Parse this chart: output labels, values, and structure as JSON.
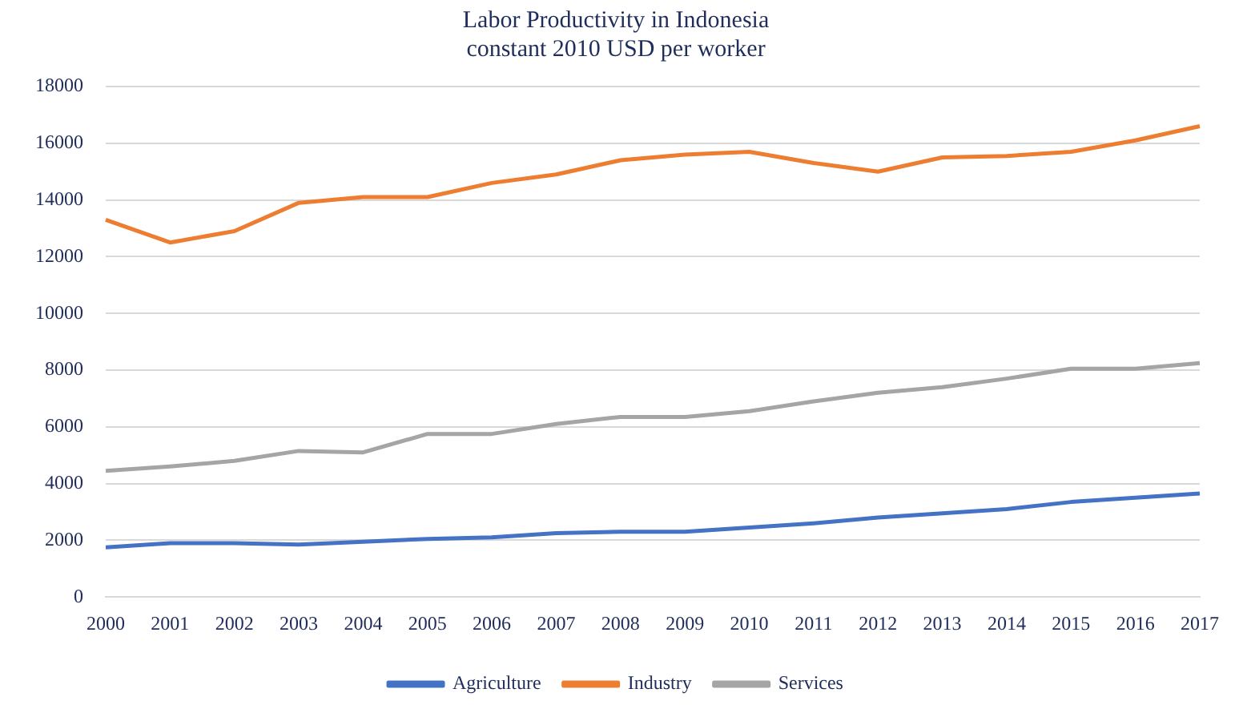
{
  "chart_data": {
    "type": "line",
    "title": [
      "Labor Productivity in Indonesia",
      "constant 2010 USD per worker"
    ],
    "categories": [
      "2000",
      "2001",
      "2002",
      "2003",
      "2004",
      "2005",
      "2006",
      "2007",
      "2008",
      "2009",
      "2010",
      "2011",
      "2012",
      "2013",
      "2014",
      "2015",
      "2016",
      "2017"
    ],
    "series": [
      {
        "name": "Agriculture",
        "color": "#4472c4",
        "values": [
          1750,
          1900,
          1900,
          1850,
          1950,
          2050,
          2100,
          2250,
          2300,
          2300,
          2450,
          2600,
          2800,
          2950,
          3100,
          3350,
          3500,
          3650
        ]
      },
      {
        "name": "Industry",
        "color": "#ed7d31",
        "values": [
          13300,
          12500,
          12900,
          13900,
          14100,
          14100,
          14600,
          14900,
          15400,
          15600,
          15700,
          15300,
          15000,
          15500,
          15550,
          15700,
          16100,
          16600
        ]
      },
      {
        "name": "Services",
        "color": "#a5a5a5",
        "values": [
          4450,
          4600,
          4800,
          5150,
          5100,
          5750,
          5750,
          6100,
          6350,
          6350,
          6550,
          6900,
          7200,
          7400,
          7700,
          8050,
          8050,
          8250
        ]
      }
    ],
    "ylim": [
      0,
      18000
    ],
    "yticks": [
      0,
      2000,
      4000,
      6000,
      8000,
      10000,
      12000,
      14000,
      16000,
      18000
    ],
    "grid": "y",
    "legend": "bottom",
    "marker": "none",
    "line_style": "solid"
  }
}
